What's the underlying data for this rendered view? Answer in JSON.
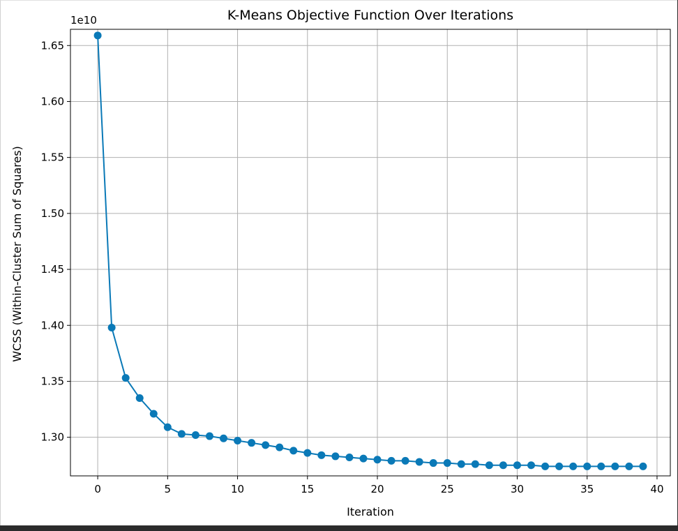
{
  "chart_data": {
    "type": "line",
    "title": "K-Means Objective Function Over Iterations",
    "xlabel": "Iteration",
    "ylabel": "WCSS (Within-Cluster Sum of Squares)",
    "y_multiplier_label": "1e10",
    "xlim": [
      -1.95,
      40.95
    ],
    "ylim": [
      1.2655,
      1.6645
    ],
    "x_ticks": [
      0,
      5,
      10,
      15,
      20,
      25,
      30,
      35,
      40
    ],
    "x_tick_labels": [
      "0",
      "5",
      "10",
      "15",
      "20",
      "25",
      "30",
      "35",
      "40"
    ],
    "y_ticks": [
      1.3,
      1.35,
      1.4,
      1.45,
      1.5,
      1.55,
      1.6,
      1.65
    ],
    "y_tick_labels": [
      "1.30",
      "1.35",
      "1.40",
      "1.45",
      "1.50",
      "1.55",
      "1.60",
      "1.65"
    ],
    "grid": true,
    "marker": "circle",
    "series": [
      {
        "color": "#0a79b7",
        "x": [
          0,
          1,
          2,
          3,
          4,
          5,
          6,
          7,
          8,
          9,
          10,
          11,
          12,
          13,
          14,
          15,
          16,
          17,
          18,
          19,
          20,
          21,
          22,
          23,
          24,
          25,
          26,
          27,
          28,
          29,
          30,
          31,
          32,
          33,
          34,
          35,
          36,
          37,
          38,
          39
        ],
        "y": [
          1.659,
          1.398,
          1.353,
          1.335,
          1.321,
          1.309,
          1.303,
          1.302,
          1.301,
          1.299,
          1.297,
          1.295,
          1.293,
          1.291,
          1.288,
          1.286,
          1.284,
          1.283,
          1.282,
          1.281,
          1.28,
          1.279,
          1.279,
          1.278,
          1.277,
          1.277,
          1.276,
          1.276,
          1.275,
          1.275,
          1.275,
          1.275,
          1.274,
          1.274,
          1.274,
          1.274,
          1.274,
          1.274,
          1.274,
          1.274
        ]
      }
    ]
  }
}
